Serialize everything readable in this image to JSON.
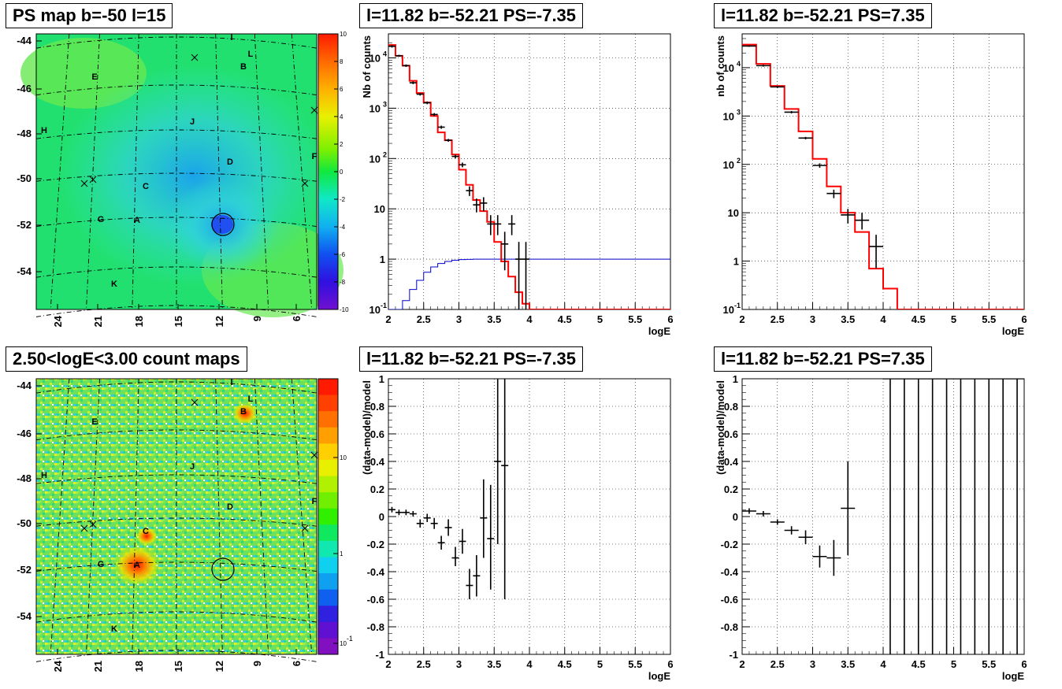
{
  "titles": {
    "map1": "PS map b=-50 l=15",
    "map2": "2.50<logE<3.00 count maps",
    "spec_neg": "l=11.82 b=-52.21 PS=-7.35",
    "spec_pos": "l=11.82 b=-52.21 PS=7.35",
    "resid_neg": "l=11.82 b=-52.21 PS=-7.35",
    "resid_pos": "l=11.82 b=-52.21 PS=7.35"
  },
  "map_axes": {
    "y_ticks": [
      "-44",
      "-46",
      "-48",
      "-50",
      "-52",
      "-54"
    ],
    "x_ticks": [
      "24",
      "21",
      "18",
      "15",
      "12",
      "9",
      "6"
    ],
    "source_letters": [
      "I",
      "L",
      "B",
      "E",
      "H",
      "J",
      "D",
      "F",
      "C",
      "G",
      "A",
      "K"
    ]
  },
  "colorbar1": {
    "ticks": [
      "10",
      "8",
      "6",
      "4",
      "2",
      "0",
      "-2",
      "-4",
      "-6",
      "-8",
      "-10"
    ]
  },
  "colorbar2": {
    "ticks": [
      "10",
      "1",
      "10^-1"
    ],
    "tick_labels": [
      "10",
      "1",
      "10"
    ],
    "exp_label": "-1"
  },
  "colors": {
    "data": "#000000",
    "model": "#ff0000",
    "efficiency": "#0000cc",
    "grid": "#000000"
  },
  "chart_data": [
    {
      "id": "spec_neg",
      "type": "line",
      "log_y": true,
      "xlabel": "logE",
      "ylabel": "Nb of counts",
      "xlim": [
        2,
        6
      ],
      "ylim": [
        0.1,
        30000
      ],
      "x_ticks": [
        "2",
        "2.5",
        "3",
        "3.5",
        "4",
        "4.5",
        "5",
        "5.5",
        "6"
      ],
      "y_ticks": [
        {
          "v": 0.1,
          "label": "10",
          "exp": "-1"
        },
        {
          "v": 1,
          "label": "1"
        },
        {
          "v": 10,
          "label": "10"
        },
        {
          "v": 100,
          "label": "10",
          "exp": "2"
        },
        {
          "v": 1000,
          "label": "10",
          "exp": "3"
        },
        {
          "v": 10000,
          "label": "10",
          "exp": "4"
        }
      ],
      "model": {
        "edges": [
          2,
          2.1,
          2.2,
          2.3,
          2.4,
          2.5,
          2.6,
          2.7,
          2.8,
          2.9,
          3.0,
          3.1,
          3.2,
          3.3,
          3.4,
          3.5,
          3.6,
          3.7,
          3.8,
          3.9,
          4.0,
          6.0
        ],
        "values": [
          18000,
          11000,
          7000,
          3500,
          2000,
          1300,
          700,
          330,
          230,
          120,
          60,
          30,
          15,
          9,
          5.5,
          2.2,
          0.9,
          0.45,
          0.22,
          0.13,
          0.1
        ]
      },
      "points": [
        {
          "x": 2.05,
          "y": 17000,
          "ylo": 16000,
          "yhi": 18000
        },
        {
          "x": 2.15,
          "y": 11000,
          "ylo": 10500,
          "yhi": 11500
        },
        {
          "x": 2.25,
          "y": 7000,
          "ylo": 6600,
          "yhi": 7400
        },
        {
          "x": 2.35,
          "y": 3200,
          "ylo": 3000,
          "yhi": 3400
        },
        {
          "x": 2.45,
          "y": 1900,
          "ylo": 1780,
          "yhi": 2000
        },
        {
          "x": 2.55,
          "y": 1280,
          "ylo": 1200,
          "yhi": 1360
        },
        {
          "x": 2.65,
          "y": 750,
          "ylo": 700,
          "yhi": 800
        },
        {
          "x": 2.75,
          "y": 420,
          "ylo": 390,
          "yhi": 450
        },
        {
          "x": 2.85,
          "y": 230,
          "ylo": 215,
          "yhi": 245
        },
        {
          "x": 2.95,
          "y": 110,
          "ylo": 100,
          "yhi": 120
        },
        {
          "x": 3.05,
          "y": 75,
          "ylo": 67,
          "yhi": 83
        },
        {
          "x": 3.15,
          "y": 23,
          "ylo": 18,
          "yhi": 28
        },
        {
          "x": 3.25,
          "y": 12,
          "ylo": 8.5,
          "yhi": 16
        },
        {
          "x": 3.35,
          "y": 13,
          "ylo": 9,
          "yhi": 17
        },
        {
          "x": 3.45,
          "y": 5,
          "ylo": 3,
          "yhi": 7.5
        },
        {
          "x": 3.55,
          "y": 5,
          "ylo": 3,
          "yhi": 7.5
        },
        {
          "x": 3.65,
          "y": 2,
          "ylo": 0.6,
          "yhi": 3.5
        },
        {
          "x": 3.75,
          "y": 5,
          "ylo": 3,
          "yhi": 7.5
        },
        {
          "x": 3.85,
          "y": 1,
          "ylo": 0.1,
          "yhi": 2.2
        },
        {
          "x": 3.95,
          "y": 1,
          "ylo": 0.1,
          "yhi": 2.2
        }
      ],
      "efficiency": {
        "edges": [
          2,
          2.1,
          2.2,
          2.3,
          2.4,
          2.5,
          2.6,
          2.7,
          2.8,
          2.9,
          3.0,
          3.1,
          3.2,
          3.3,
          6.0
        ],
        "values": [
          0.06,
          0.1,
          0.15,
          0.25,
          0.38,
          0.55,
          0.7,
          0.82,
          0.9,
          0.95,
          0.98,
          0.99,
          1.0,
          1.0
        ]
      }
    },
    {
      "id": "spec_pos",
      "type": "line",
      "log_y": true,
      "xlabel": "logE",
      "ylabel": "nb of counts",
      "xlim": [
        2,
        6
      ],
      "ylim": [
        0.1,
        50000
      ],
      "x_ticks": [
        "2",
        "2.5",
        "3",
        "3.5",
        "4",
        "4.5",
        "5",
        "5.5",
        "6"
      ],
      "y_ticks": [
        {
          "v": 0.1,
          "label": "10",
          "exp": "-1"
        },
        {
          "v": 1,
          "label": "1"
        },
        {
          "v": 10,
          "label": "10"
        },
        {
          "v": 100,
          "label": "10",
          "exp": "2"
        },
        {
          "v": 1000,
          "label": "10",
          "exp": "3"
        },
        {
          "v": 10000,
          "label": "10",
          "exp": "4"
        }
      ],
      "model": {
        "edges": [
          2,
          2.2,
          2.4,
          2.6,
          2.8,
          3.0,
          3.2,
          3.4,
          3.6,
          3.8,
          4.0,
          4.2,
          6.0
        ],
        "values": [
          30000,
          12000,
          4200,
          1400,
          480,
          130,
          35,
          10,
          4,
          0.7,
          0.27,
          0.1
        ]
      },
      "points": [
        {
          "x": 2.1,
          "y": 28000,
          "ylo": 27000,
          "yhi": 29000
        },
        {
          "x": 2.3,
          "y": 11000,
          "ylo": 10500,
          "yhi": 11500
        },
        {
          "x": 2.5,
          "y": 4000,
          "ylo": 3800,
          "yhi": 4200
        },
        {
          "x": 2.7,
          "y": 1200,
          "ylo": 1130,
          "yhi": 1270
        },
        {
          "x": 2.9,
          "y": 350,
          "ylo": 330,
          "yhi": 370
        },
        {
          "x": 3.1,
          "y": 95,
          "ylo": 85,
          "yhi": 105
        },
        {
          "x": 3.3,
          "y": 25,
          "ylo": 20,
          "yhi": 30
        },
        {
          "x": 3.5,
          "y": 9,
          "ylo": 6,
          "yhi": 12
        },
        {
          "x": 3.7,
          "y": 7,
          "ylo": 4.5,
          "yhi": 10
        },
        {
          "x": 3.9,
          "y": 2,
          "ylo": 0.7,
          "yhi": 3.5
        }
      ]
    },
    {
      "id": "resid_neg",
      "type": "scatter",
      "xlabel": "logE",
      "ylabel": "(data-model)/model",
      "xlim": [
        2,
        6
      ],
      "ylim": [
        -1,
        1
      ],
      "x_ticks": [
        "2",
        "2.5",
        "3",
        "3.5",
        "4",
        "4.5",
        "5",
        "5.5",
        "6"
      ],
      "y_ticks": [
        "-1",
        "-0.8",
        "-0.6",
        "-0.4",
        "-0.2",
        "0",
        "0.2",
        "0.4",
        "0.6",
        "0.8",
        "1"
      ],
      "points": [
        {
          "x": 2.05,
          "y": 0.05,
          "ylo": 0.03,
          "yhi": 0.07
        },
        {
          "x": 2.15,
          "y": 0.03,
          "ylo": 0.01,
          "yhi": 0.05
        },
        {
          "x": 2.25,
          "y": 0.03,
          "ylo": 0.01,
          "yhi": 0.05
        },
        {
          "x": 2.35,
          "y": 0.02,
          "ylo": 0.0,
          "yhi": 0.04
        },
        {
          "x": 2.45,
          "y": -0.05,
          "ylo": -0.08,
          "yhi": -0.02
        },
        {
          "x": 2.55,
          "y": -0.01,
          "ylo": -0.04,
          "yhi": 0.02
        },
        {
          "x": 2.65,
          "y": -0.05,
          "ylo": -0.09,
          "yhi": -0.01
        },
        {
          "x": 2.75,
          "y": -0.19,
          "ylo": -0.24,
          "yhi": -0.14
        },
        {
          "x": 2.85,
          "y": -0.08,
          "ylo": -0.14,
          "yhi": -0.02
        },
        {
          "x": 2.95,
          "y": -0.3,
          "ylo": -0.36,
          "yhi": -0.22
        },
        {
          "x": 3.05,
          "y": -0.18,
          "ylo": -0.27,
          "yhi": -0.09
        },
        {
          "x": 3.15,
          "y": -0.5,
          "ylo": -0.6,
          "yhi": -0.38
        },
        {
          "x": 3.25,
          "y": -0.43,
          "ylo": -0.58,
          "yhi": -0.28
        },
        {
          "x": 3.35,
          "y": -0.01,
          "ylo": -0.3,
          "yhi": 0.27
        },
        {
          "x": 3.45,
          "y": -0.16,
          "ylo": -0.53,
          "yhi": 0.23
        },
        {
          "x": 3.55,
          "y": 0.4,
          "ylo": -0.2,
          "yhi": 1.0
        },
        {
          "x": 3.65,
          "y": 0.37,
          "ylo": -0.6,
          "yhi": 1.0
        }
      ]
    },
    {
      "id": "resid_pos",
      "type": "scatter",
      "xlabel": "logE",
      "ylabel": "(data-model)/model",
      "xlim": [
        2,
        6
      ],
      "ylim": [
        -1,
        1
      ],
      "x_ticks": [
        "2",
        "2.5",
        "3",
        "3.5",
        "4",
        "4.5",
        "5",
        "5.5",
        "6"
      ],
      "y_ticks": [
        "-1",
        "-0.8",
        "-0.6",
        "-0.4",
        "-0.2",
        "0",
        "0.2",
        "0.4",
        "0.6",
        "0.8",
        "1"
      ],
      "points": [
        {
          "x": 2.1,
          "y": 0.04,
          "ylo": 0.02,
          "yhi": 0.06
        },
        {
          "x": 2.3,
          "y": 0.02,
          "ylo": 0.0,
          "yhi": 0.04
        },
        {
          "x": 2.5,
          "y": -0.04,
          "ylo": -0.06,
          "yhi": -0.02
        },
        {
          "x": 2.7,
          "y": -0.1,
          "ylo": -0.13,
          "yhi": -0.07
        },
        {
          "x": 2.9,
          "y": -0.15,
          "ylo": -0.2,
          "yhi": -0.1
        },
        {
          "x": 3.1,
          "y": -0.29,
          "ylo": -0.37,
          "yhi": -0.21
        },
        {
          "x": 3.3,
          "y": -0.3,
          "ylo": -0.43,
          "yhi": -0.17
        },
        {
          "x": 3.5,
          "y": 0.06,
          "ylo": -0.28,
          "yhi": 0.4
        },
        {
          "x": 4.1,
          "y": 1,
          "ylo": -1,
          "yhi": 1
        },
        {
          "x": 4.3,
          "y": 1,
          "ylo": -1,
          "yhi": 1
        },
        {
          "x": 4.5,
          "y": 1,
          "ylo": -1,
          "yhi": 1
        },
        {
          "x": 4.7,
          "y": 1,
          "ylo": -1,
          "yhi": 1
        },
        {
          "x": 4.9,
          "y": 1,
          "ylo": -1,
          "yhi": 1
        },
        {
          "x": 5.1,
          "y": 1,
          "ylo": -1,
          "yhi": 1
        },
        {
          "x": 5.3,
          "y": 1,
          "ylo": -1,
          "yhi": 1
        },
        {
          "x": 5.5,
          "y": 1,
          "ylo": -1,
          "yhi": 1
        },
        {
          "x": 5.7,
          "y": 1,
          "ylo": -1,
          "yhi": 1
        },
        {
          "x": 5.9,
          "y": 1,
          "ylo": -1,
          "yhi": 1
        }
      ]
    }
  ]
}
